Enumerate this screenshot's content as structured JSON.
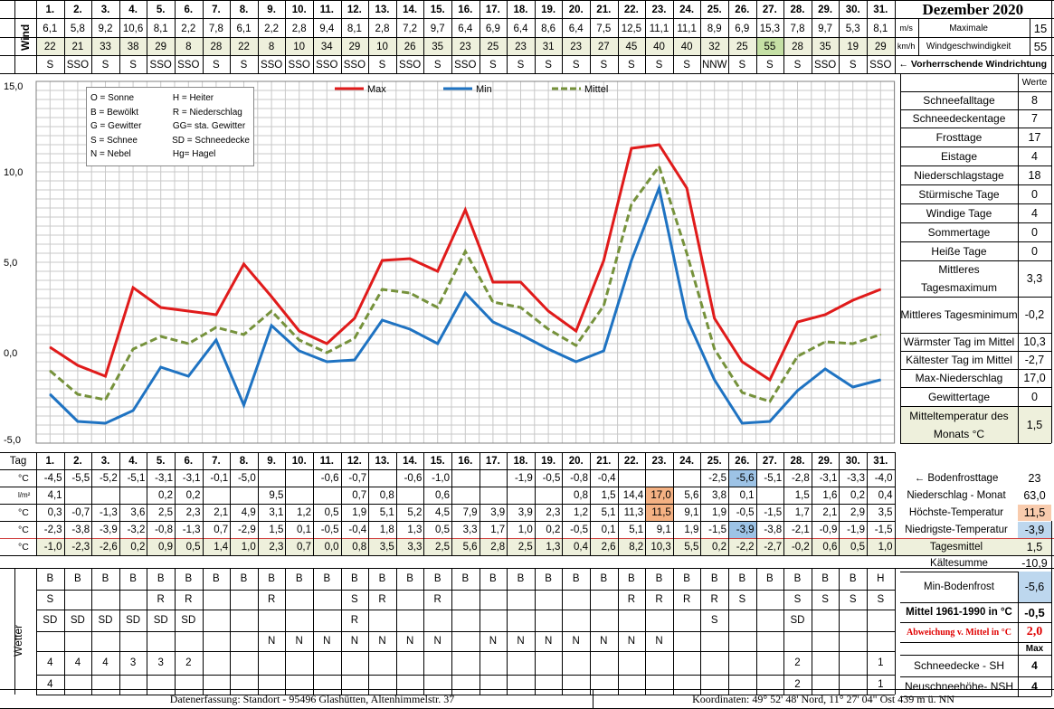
{
  "title": "Dezember 2020",
  "days": [
    "1.",
    "2.",
    "3.",
    "4.",
    "5.",
    "6.",
    "7.",
    "8.",
    "9.",
    "10.",
    "11.",
    "12.",
    "13.",
    "14.",
    "15.",
    "16.",
    "17.",
    "18.",
    "19.",
    "20.",
    "21.",
    "22.",
    "23.",
    "24.",
    "25.",
    "26.",
    "27.",
    "28.",
    "29.",
    "30.",
    "31."
  ],
  "wind": {
    "label": "Wind",
    "ms": [
      "6,1",
      "5,8",
      "9,2",
      "10,6",
      "8,1",
      "2,2",
      "7,8",
      "6,1",
      "2,2",
      "2,8",
      "9,4",
      "8,1",
      "2,8",
      "7,2",
      "9,7",
      "6,4",
      "6,9",
      "6,4",
      "8,6",
      "6,4",
      "7,5",
      "12,5",
      "11,1",
      "11,1",
      "8,9",
      "6,9",
      "15,3",
      "7,8",
      "9,7",
      "5,3",
      "8,1"
    ],
    "kmh": [
      "22",
      "21",
      "33",
      "38",
      "29",
      "8",
      "28",
      "22",
      "8",
      "10",
      "34",
      "29",
      "10",
      "26",
      "35",
      "23",
      "25",
      "23",
      "31",
      "23",
      "27",
      "45",
      "40",
      "40",
      "32",
      "25",
      "55",
      "28",
      "35",
      "19",
      "29"
    ],
    "dir": [
      "S",
      "SSO",
      "S",
      "S",
      "SSO",
      "SSO",
      "S",
      "S",
      "SSO",
      "SSO",
      "SSO",
      "SSO",
      "S",
      "SSO",
      "S",
      "SSO",
      "S",
      "S",
      "S",
      "S",
      "S",
      "S",
      "S",
      "S",
      "NNW",
      "S",
      "S",
      "S",
      "SSO",
      "S",
      "SSO"
    ],
    "unit_ms": "m/s",
    "unit_kmh": "km/h",
    "max_label_1": "Maximale",
    "max_label_2": "Windgeschwindigkeit",
    "max_ms": "15",
    "max_kmh": "55",
    "dir_label": "← Vorherrschende Windrichtung"
  },
  "legend_box": [
    [
      "O = Sonne",
      "H = Heiter"
    ],
    [
      "B = Bewölkt",
      "R = Niederschlag"
    ],
    [
      "G = Gewitter",
      "GG= sta. Gewitter"
    ],
    [
      "S = Schnee",
      "SD = Schneedecke"
    ],
    [
      "N = Nebel",
      "Hg= Hagel"
    ]
  ],
  "chart_data": {
    "type": "line",
    "x": [
      1,
      2,
      3,
      4,
      5,
      6,
      7,
      8,
      9,
      10,
      11,
      12,
      13,
      14,
      15,
      16,
      17,
      18,
      19,
      20,
      21,
      22,
      23,
      24,
      25,
      26,
      27,
      28,
      29,
      30,
      31
    ],
    "ylim": [
      -5,
      15
    ],
    "yticks": [
      "15,0",
      "10,0",
      "5,0",
      "0,0",
      "-5,0"
    ],
    "grid": true,
    "legend_position": "top",
    "series": [
      {
        "name": "Max",
        "color": "#e01b1b",
        "dash": false,
        "values": [
          0.3,
          -0.7,
          -1.3,
          3.6,
          2.5,
          2.3,
          2.1,
          4.9,
          3.1,
          1.2,
          0.5,
          1.9,
          5.1,
          5.2,
          4.5,
          7.9,
          3.9,
          3.9,
          2.3,
          1.2,
          5.1,
          11.3,
          11.5,
          9.1,
          1.9,
          -0.5,
          -1.5,
          1.7,
          2.1,
          2.9,
          3.5
        ]
      },
      {
        "name": "Min",
        "color": "#1f73c2",
        "dash": false,
        "values": [
          -2.3,
          -3.8,
          -3.9,
          -3.2,
          -0.8,
          -1.3,
          0.7,
          -2.9,
          1.5,
          0.1,
          -0.5,
          -0.4,
          1.8,
          1.3,
          0.5,
          3.3,
          1.7,
          1.0,
          0.2,
          -0.5,
          0.1,
          5.1,
          9.1,
          1.9,
          -1.5,
          -3.9,
          -3.8,
          -2.1,
          -0.9,
          -1.9,
          -1.5
        ]
      },
      {
        "name": "Mittel",
        "color": "#76923c",
        "dash": true,
        "values": [
          -1.0,
          -2.3,
          -2.6,
          0.2,
          0.9,
          0.5,
          1.4,
          1.0,
          2.3,
          0.7,
          0.0,
          0.8,
          3.5,
          3.3,
          2.5,
          5.6,
          2.8,
          2.5,
          1.3,
          0.4,
          2.6,
          8.2,
          10.3,
          5.5,
          0.2,
          -2.2,
          -2.7,
          -0.2,
          0.6,
          0.5,
          1.0
        ]
      }
    ]
  },
  "table": {
    "tag_label": "Tag",
    "rows": [
      {
        "unit": "°C",
        "values": [
          "-4,5",
          "-5,5",
          "-5,2",
          "-5,1",
          "-3,1",
          "-3,1",
          "-0,1",
          "-5,0",
          "",
          "",
          "-0,6",
          "-0,7",
          "",
          "-0,6",
          "-1,0",
          "",
          "",
          "-1,9",
          "-0,5",
          "-0,8",
          "-0,4",
          "",
          "",
          "",
          "-2,5",
          "-5,6",
          "-5,1",
          "-2,8",
          "-3,1",
          "-3,3",
          "-4,0"
        ]
      },
      {
        "unit": "l/m²",
        "values": [
          "4,1",
          "",
          "",
          "",
          "0,2",
          "0,2",
          "",
          "",
          "9,5",
          "",
          "",
          "0,7",
          "0,8",
          "",
          "0,6",
          "",
          "",
          "",
          "",
          "0,8",
          "1,5",
          "14,4",
          "17,0",
          "5,6",
          "3,8",
          "0,1",
          "",
          "1,5",
          "1,6",
          "0,2",
          "0,4"
        ]
      },
      {
        "unit": "°C",
        "values": [
          "0,3",
          "-0,7",
          "-1,3",
          "3,6",
          "2,5",
          "2,3",
          "2,1",
          "4,9",
          "3,1",
          "1,2",
          "0,5",
          "1,9",
          "5,1",
          "5,2",
          "4,5",
          "7,9",
          "3,9",
          "3,9",
          "2,3",
          "1,2",
          "5,1",
          "11,3",
          "11,5",
          "9,1",
          "1,9",
          "-0,5",
          "-1,5",
          "1,7",
          "2,1",
          "2,9",
          "3,5"
        ]
      },
      {
        "unit": "°C",
        "values": [
          "-2,3",
          "-3,8",
          "-3,9",
          "-3,2",
          "-0,8",
          "-1,3",
          "0,7",
          "-2,9",
          "1,5",
          "0,1",
          "-0,5",
          "-0,4",
          "1,8",
          "1,3",
          "0,5",
          "3,3",
          "1,7",
          "1,0",
          "0,2",
          "-0,5",
          "0,1",
          "5,1",
          "9,1",
          "1,9",
          "-1,5",
          "-3,9",
          "-3,8",
          "-2,1",
          "-0,9",
          "-1,9",
          "-1,5"
        ]
      },
      {
        "unit": "°C",
        "values": [
          "-1,0",
          "-2,3",
          "-2,6",
          "0,2",
          "0,9",
          "0,5",
          "1,4",
          "1,0",
          "2,3",
          "0,7",
          "0,0",
          "0,8",
          "3,5",
          "3,3",
          "2,5",
          "5,6",
          "2,8",
          "2,5",
          "1,3",
          "0,4",
          "2,6",
          "8,2",
          "10,3",
          "5,5",
          "0,2",
          "-2,2",
          "-2,7",
          "-0,2",
          "0,6",
          "0,5",
          "1,0"
        ]
      }
    ],
    "highlight_colors": {
      "max": "#f4b183",
      "min": "#9dc3e6",
      "peak": "#f4b183"
    }
  },
  "right_rows": [
    {
      "label": "← Bodenfrosttage",
      "value": "23"
    },
    {
      "label": "Niederschlag - Monat",
      "value": "63,0"
    },
    {
      "label": "Höchste-Temperatur",
      "value": "11,5"
    },
    {
      "label": "Niedrigste-Temperatur",
      "value": "-3,9"
    },
    {
      "label": "Tagesmittel",
      "value": "1,5"
    }
  ],
  "weather": {
    "label": "Wetter",
    "rows": [
      [
        "B",
        "B",
        "B",
        "B",
        "B",
        "B",
        "B",
        "B",
        "B",
        "B",
        "B",
        "B",
        "B",
        "B",
        "B",
        "B",
        "B",
        "B",
        "B",
        "B",
        "B",
        "B",
        "B",
        "B",
        "B",
        "B",
        "B",
        "B",
        "B",
        "B",
        "H"
      ],
      [
        "S",
        "",
        "",
        "",
        "R",
        "R",
        "",
        "",
        "R",
        "",
        "",
        "S",
        "R",
        "",
        "R",
        "",
        "",
        "",
        "",
        "",
        "",
        "R",
        "R",
        "R",
        "R",
        "S",
        "",
        "S",
        "S",
        "S",
        "S"
      ],
      [
        "SD",
        "SD",
        "SD",
        "SD",
        "SD",
        "SD",
        "",
        "",
        "",
        "",
        "",
        "R",
        "",
        "",
        "",
        "",
        "",
        "",
        "",
        "",
        "",
        "",
        "",
        "",
        "S",
        "",
        "",
        "SD",
        "",
        "",
        ""
      ],
      [
        "",
        "",
        "",
        "",
        "",
        "",
        "",
        "",
        "N",
        "N",
        "N",
        "N",
        "N",
        "N",
        "N",
        "",
        "N",
        "N",
        "N",
        "N",
        "N",
        "N",
        "N",
        "",
        "",
        "",
        "",
        "",
        "",
        "",
        ""
      ],
      [
        "4",
        "4",
        "4",
        "3",
        "3",
        "2",
        "",
        "",
        "",
        "",
        "",
        "",
        "",
        "",
        "",
        "",
        "",
        "",
        "",
        "",
        "",
        "",
        "",
        "",
        "",
        "",
        "",
        "2",
        "",
        "",
        "1"
      ],
      [
        "4",
        "",
        "",
        "",
        "",
        "",
        "",
        "",
        "",
        "",
        "",
        "",
        "",
        "",
        "",
        "",
        "",
        "",
        "",
        "",
        "",
        "",
        "",
        "",
        "",
        "",
        "",
        "2",
        "",
        "",
        "1"
      ]
    ]
  },
  "stats": [
    {
      "label": "Werte",
      "value": ""
    },
    {
      "label": "Schneefalltage",
      "value": "8"
    },
    {
      "label": "Schneedeckentage",
      "value": "7"
    },
    {
      "label": "Frosttage",
      "value": "17"
    },
    {
      "label": "Eistage",
      "value": "4"
    },
    {
      "label": "Niederschlagstage",
      "value": "18"
    },
    {
      "label": "Stürmische Tage",
      "value": "0"
    },
    {
      "label": "Windige Tage",
      "value": "4"
    },
    {
      "label": "Sommertage",
      "value": "0"
    },
    {
      "label": "Heiße Tage",
      "value": "0"
    },
    {
      "label": "Mittleres Tagesmaximum",
      "value": "3,3"
    },
    {
      "label": "Mittleres Tagesminimum",
      "value": "-0,2"
    },
    {
      "label": "Wärmster Tag im Mittel",
      "value": "10,3"
    },
    {
      "label": "Kältester Tag im Mittel",
      "value": "-2,7"
    },
    {
      "label": "Max-Niederschlag",
      "value": "17,0"
    },
    {
      "label": "Gewittertage",
      "value": "0"
    },
    {
      "label": "Mitteltemperatur des Monats °C",
      "value": "1,5"
    }
  ],
  "lower_stats": [
    {
      "label": "Kältesumme",
      "value": "-10,9"
    },
    {
      "label": "Min-Bodenfrost",
      "value": "-5,6"
    },
    {
      "label": "Mittel 1961-1990 in °C",
      "value": "-0,5"
    },
    {
      "label": "Abweichung v. Mittel in °C",
      "value": "2,0"
    },
    {
      "label": "",
      "value": "Max"
    },
    {
      "label": "Schneedecke -  SH",
      "value": "4"
    },
    {
      "label": "Neuschneehöhe- NSH",
      "value": "4"
    }
  ],
  "footer": {
    "left": "Datenerfassung:  Standort -  95496  Glashütten, Altenhimmelstr. 37",
    "right": "Koordinaten:  49° 52' 48' Nord,   11° 27' 04\" Ost   439 m ü. NN"
  }
}
